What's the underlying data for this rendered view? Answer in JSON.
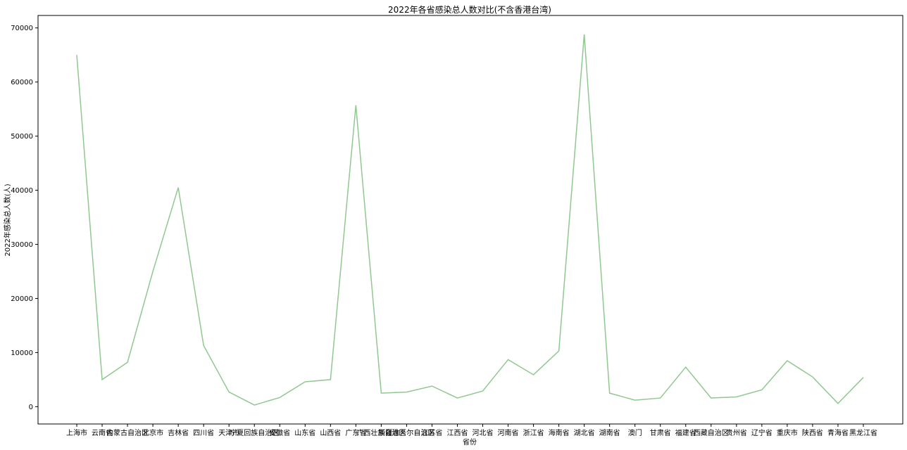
{
  "chart_data": {
    "type": "line",
    "title": "2022年各省感染总人数对比(不含香港台湾)",
    "xlabel": "省份",
    "ylabel": "2022年感染总人数(人)",
    "categories": [
      "上海市",
      "云南省",
      "内蒙古自治区",
      "北京市",
      "吉林省",
      "四川省",
      "天津市",
      "宁夏回族自治区",
      "安徽省",
      "山东省",
      "山西省",
      "广东省",
      "广西壮族自治区",
      "新疆维吾尔自治区",
      "江苏省",
      "江西省",
      "河北省",
      "河南省",
      "浙江省",
      "海南省",
      "湖北省",
      "湖南省",
      "澳门",
      "甘肃省",
      "福建省",
      "西藏自治区",
      "贵州省",
      "辽宁省",
      "重庆市",
      "陕西省",
      "青海省",
      "黑龙江省"
    ],
    "values": [
      65000,
      5000,
      8200,
      25000,
      40500,
      11300,
      2700,
      300,
      1700,
      4600,
      5000,
      55700,
      2500,
      2700,
      3800,
      1600,
      2900,
      8700,
      5900,
      10300,
      68800,
      2500,
      1200,
      1600,
      7300,
      1600,
      1800,
      3100,
      8500,
      5500,
      600,
      5400
    ],
    "yticks": [
      0,
      10000,
      20000,
      30000,
      40000,
      50000,
      60000,
      70000
    ],
    "ylim": [
      -3200,
      72300
    ],
    "grid": false,
    "line_color": "#90c890"
  }
}
